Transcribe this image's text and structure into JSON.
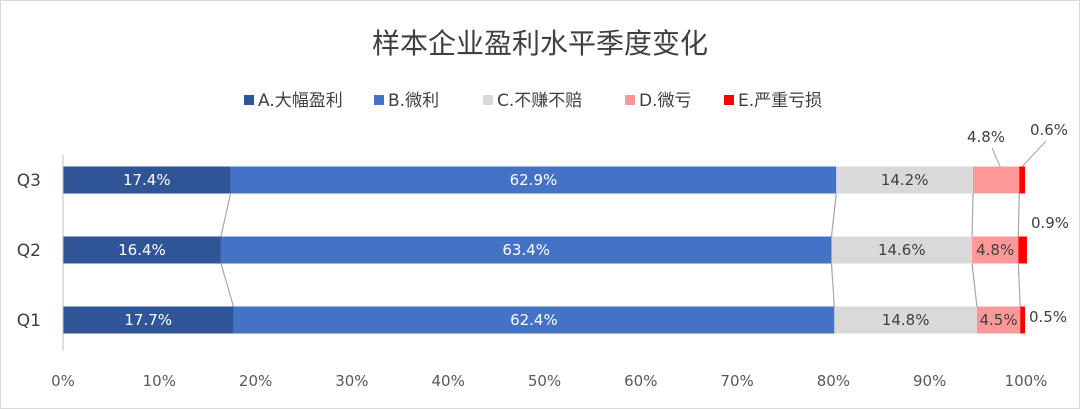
{
  "chart_data": {
    "type": "bar",
    "orientation": "horizontal",
    "stacked": "percent",
    "title": "样本企业盈利水平季度变化",
    "categories": [
      "Q3",
      "Q2",
      "Q1"
    ],
    "series": [
      {
        "name": "A.大幅盈利",
        "color": "#2f5597",
        "values": [
          17.4,
          16.4,
          17.7
        ],
        "labels": [
          "17.4%",
          "16.4%",
          "17.7%"
        ]
      },
      {
        "name": "B.微利",
        "color": "#4472c4",
        "values": [
          62.9,
          63.4,
          62.4
        ],
        "labels": [
          "62.9%",
          "63.4%",
          "62.4%"
        ]
      },
      {
        "name": "C.不赚不赔",
        "color": "#d9d9d9",
        "values": [
          14.2,
          14.6,
          14.8
        ],
        "labels": [
          "14.2%",
          "14.6%",
          "14.8%"
        ]
      },
      {
        "name": "D.微亏",
        "color": "#ff9999",
        "values": [
          4.8,
          4.8,
          4.5
        ],
        "labels": [
          "4.8%",
          "4.8%",
          "4.5%"
        ]
      },
      {
        "name": "E.严重亏损",
        "color": "#ff0000",
        "values": [
          0.6,
          0.9,
          0.5
        ],
        "labels": [
          "0.6%",
          "0.9%",
          "0.5%"
        ]
      }
    ],
    "xlim": [
      0,
      100
    ],
    "x_ticks": [
      "0%",
      "10%",
      "20%",
      "30%",
      "40%",
      "50%",
      "60%",
      "70%",
      "80%",
      "90%",
      "100%"
    ],
    "legend_position": "top",
    "series_lines": true,
    "grid": false
  }
}
